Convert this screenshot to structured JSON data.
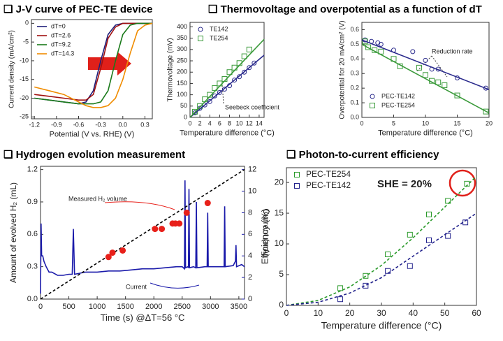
{
  "chart_data": [
    {
      "type": "line",
      "title": "❑ J-V curve of PEC-TE device",
      "xlabel": "Potential (V vs. RHE) (V)",
      "ylabel": "Current density (mA/cm²)",
      "xlim": [
        -1.24,
        0.4
      ],
      "ylim": [
        -25.5,
        1
      ],
      "xticks": [
        -1.2,
        -0.9,
        -0.6,
        -0.3,
        {
          "value": 0,
          "label": "0.0"
        },
        0.3
      ],
      "yticks": [
        0,
        -5,
        -10,
        -15,
        -20,
        -25
      ],
      "legend": "upper left",
      "series": [
        {
          "name": "dT=0",
          "color": "#1f1f7a",
          "marker": "none",
          "x": [
            -1.2,
            -1.0,
            -0.8,
            -0.6,
            -0.5,
            -0.4,
            -0.3,
            -0.2,
            -0.1,
            0,
            0.1,
            0.2,
            0.3,
            0.4
          ],
          "values": [
            -20,
            -20.5,
            -21,
            -21.5,
            -21,
            -18,
            -10,
            -3,
            -0.5,
            0,
            0,
            0,
            0,
            0
          ]
        },
        {
          "name": "dT=2.6",
          "color": "#a01010",
          "marker": "none",
          "x": [
            -1.2,
            -1.0,
            -0.8,
            -0.6,
            -0.5,
            -0.4,
            -0.3,
            -0.2,
            -0.1,
            0,
            0.1,
            0.2,
            0.3,
            0.4
          ],
          "values": [
            -19,
            -19.5,
            -20,
            -20.5,
            -20.5,
            -19,
            -12,
            -4,
            -1,
            0,
            0,
            0,
            0,
            0
          ]
        },
        {
          "name": "dT=9.2",
          "color": "#1a7a1a",
          "marker": "none",
          "x": [
            -1.2,
            -1.0,
            -0.8,
            -0.6,
            -0.5,
            -0.4,
            -0.3,
            -0.2,
            -0.1,
            0,
            0.1,
            0.2,
            0.3,
            0.4
          ],
          "values": [
            -20,
            -20.5,
            -21,
            -21.5,
            -21.5,
            -21.5,
            -21,
            -18,
            -10,
            -3,
            -0.5,
            0,
            0,
            0
          ]
        },
        {
          "name": "dT=14.3",
          "color": "#f08c00",
          "marker": "none",
          "x": [
            -1.2,
            -1.0,
            -0.8,
            -0.6,
            -0.5,
            -0.4,
            -0.3,
            -0.2,
            -0.1,
            0,
            0.1,
            0.2,
            0.3,
            0.4
          ],
          "values": [
            -17,
            -18,
            -19,
            -21,
            -22,
            -22.5,
            -22.5,
            -22,
            -20,
            -15,
            -8,
            -2,
            -0.5,
            0
          ]
        }
      ]
    },
    {
      "type": "scatter",
      "title": "❑ Thermovoltage and overpotential as a function of dT",
      "xlabel": "Temperature difference (°C)",
      "ylabel": "Thermovoltage (mV)",
      "xlim": [
        0,
        15
      ],
      "ylim": [
        0,
        420
      ],
      "xticks": [
        0,
        2,
        4,
        6,
        8,
        10,
        12,
        14
      ],
      "yticks": [
        0,
        50,
        100,
        150,
        200,
        250,
        300,
        350,
        400
      ],
      "legend": "upper left",
      "annotations": [
        "Seebeck coefficient"
      ],
      "series": [
        {
          "name": "TE142",
          "color": "#2a2a8c",
          "marker": "circle",
          "x": [
            1,
            2,
            3,
            4,
            5,
            6,
            7,
            8,
            9,
            10,
            11,
            12,
            13
          ],
          "values": [
            20,
            40,
            55,
            70,
            95,
            110,
            125,
            140,
            165,
            180,
            200,
            220,
            240
          ]
        },
        {
          "name": "TE254",
          "color": "#3a9a3a",
          "marker": "square",
          "x": [
            1,
            2,
            3,
            4,
            5,
            6,
            7,
            8,
            9,
            10,
            11,
            12
          ],
          "values": [
            25,
            50,
            80,
            100,
            130,
            150,
            170,
            200,
            220,
            240,
            270,
            300
          ]
        },
        {
          "color": "#2a2a8c",
          "marker": "none",
          "x": [
            0,
            15
          ],
          "values": [
            0,
            275
          ]
        },
        {
          "color": "#3a9a3a",
          "marker": "none",
          "x": [
            0,
            15
          ],
          "values": [
            0,
            345
          ]
        }
      ]
    },
    {
      "type": "scatter",
      "xlabel": "Temperature difference (°C)",
      "ylabel": "Overpotential for 20 mA/cm² (V)",
      "xlim": [
        0,
        20
      ],
      "ylim": [
        0,
        0.65
      ],
      "xticks": [
        0,
        5,
        10,
        15,
        20
      ],
      "yticks": [
        {
          "value": 0,
          "label": "0.0"
        },
        0.1,
        0.2,
        0.3,
        0.4,
        0.5,
        0.6
      ],
      "legend": "lower left",
      "annotations": [
        "Reduction rate"
      ],
      "series": [
        {
          "name": "PEC-TE142",
          "color": "#2a2a8c",
          "marker": "circle",
          "x": [
            0.5,
            1.5,
            2.5,
            3,
            5,
            8,
            10,
            11,
            12,
            15,
            19.5
          ],
          "values": [
            0.53,
            0.52,
            0.51,
            0.5,
            0.46,
            0.45,
            0.39,
            0.33,
            0.33,
            0.27,
            0.2
          ]
        },
        {
          "name": "PEC-TE254",
          "color": "#3a9a3a",
          "marker": "square",
          "x": [
            0.5,
            1,
            2,
            3,
            5,
            6,
            9,
            10,
            11,
            12,
            13,
            15,
            19.5
          ],
          "values": [
            0.52,
            0.48,
            0.46,
            0.45,
            0.4,
            0.35,
            0.34,
            0.29,
            0.25,
            0.24,
            0.22,
            0.15,
            0.04
          ]
        },
        {
          "color": "#2a2a8c",
          "marker": "none",
          "x": [
            0,
            20
          ],
          "values": [
            0.53,
            0.19
          ]
        },
        {
          "color": "#3a9a3a",
          "marker": "none",
          "x": [
            0,
            20
          ],
          "values": [
            0.5,
            0.03
          ]
        }
      ]
    },
    {
      "type": "scatter",
      "title": "❑ Hydrogen evolution measurement",
      "xlabel": "Time (s) @ΔT=56 °C",
      "ylabel": "Amount of evolved H₂ (mL)",
      "y2label": "Current (mA)",
      "xlim": [
        0,
        3600
      ],
      "ylim": [
        0,
        1.23
      ],
      "y2lim": [
        0,
        12.3
      ],
      "xticks": [
        0,
        500,
        1000,
        1500,
        2000,
        2500,
        3000,
        3500
      ],
      "yticks": [
        {
          "value": 0,
          "label": "0.0"
        },
        0.3,
        0.6,
        0.9,
        1.2
      ],
      "y2ticks": [
        0,
        2,
        4,
        6,
        8,
        10,
        12
      ],
      "annotations": [
        "Measured H₂ volume",
        "Current"
      ],
      "series": [
        {
          "color": "#1a1aaa",
          "marker": "none",
          "axis": "y2",
          "x": [
            0,
            10,
            20,
            40,
            60,
            100,
            150,
            200,
            300,
            400,
            500,
            560,
            580,
            600,
            700,
            800,
            1000,
            1200,
            1400,
            1600,
            1800,
            2000,
            2200,
            2400,
            2500,
            2540,
            2550,
            2560,
            2600,
            2610,
            2620,
            2630,
            2700,
            2740,
            2750,
            2760,
            2900,
            2940,
            2950,
            2960,
            3100,
            3240,
            3250,
            3260,
            3400,
            3440,
            3450,
            3460,
            3550,
            3600
          ],
          "values": [
            0.5,
            7,
            4,
            4,
            3.5,
            3,
            2.5,
            2.5,
            2.2,
            2.2,
            2.3,
            2.3,
            6.5,
            2.3,
            2.4,
            2.5,
            2.5,
            2.6,
            2.6,
            2.7,
            2.8,
            2.8,
            2.9,
            3,
            3,
            2.8,
            11,
            2.9,
            3,
            2.9,
            10.2,
            2.9,
            3,
            2.9,
            9,
            2.9,
            3,
            3,
            8,
            3,
            3,
            3,
            8.6,
            3,
            3.1,
            3.5,
            5,
            3,
            3.2,
            3
          ]
        },
        {
          "color": "#000000",
          "marker": "none",
          "dash": true,
          "x": [
            0,
            3600
          ],
          "values": [
            0,
            1.2
          ]
        },
        {
          "color": "#e8201a",
          "marker": "dot",
          "x": [
            1200,
            1270,
            1450,
            2020,
            2140,
            2330,
            2380,
            2450,
            2580,
            2950
          ],
          "values": [
            0.39,
            0.43,
            0.45,
            0.65,
            0.65,
            0.7,
            0.7,
            0.7,
            0.8,
            0.89
          ]
        }
      ]
    },
    {
      "type": "scatter",
      "title": "❑ Photon-to-current efficiency",
      "xlabel": "Temperature difference (°C)",
      "ylabel": "Efficiency (%)",
      "xlim": [
        0,
        60
      ],
      "ylim": [
        0,
        22.4
      ],
      "xticks": [
        0,
        10,
        20,
        30,
        40,
        50,
        60
      ],
      "yticks": [
        0,
        5,
        10,
        15,
        20
      ],
      "legend": "upper left",
      "annotations": [
        "SHE = 20%"
      ],
      "series": [
        {
          "name": "PEC-TE254",
          "color": "#2a9a2a",
          "marker": "square",
          "x": [
            17,
            25,
            32,
            39,
            45,
            51,
            57
          ],
          "values": [
            2.8,
            4.8,
            8.3,
            11.5,
            14.8,
            17,
            19.8
          ]
        },
        {
          "name": "PEC-TE142",
          "color": "#22228c",
          "marker": "square",
          "x": [
            17,
            25,
            32,
            39,
            45,
            51,
            56.5
          ],
          "values": [
            1,
            3.2,
            5.6,
            6.4,
            10.6,
            11.3,
            13.5
          ]
        },
        {
          "color": "#2a9a2a",
          "marker": "none",
          "dash": true,
          "x": [
            0,
            10,
            20,
            30,
            40,
            50,
            60
          ],
          "values": [
            0,
            0.8,
            3,
            6.5,
            11,
            16,
            21
          ]
        },
        {
          "color": "#22228c",
          "marker": "none",
          "dash": true,
          "x": [
            0,
            10,
            20,
            30,
            40,
            50,
            60
          ],
          "values": [
            0,
            0.5,
            2,
            4.5,
            8,
            11.5,
            15
          ]
        }
      ]
    }
  ]
}
